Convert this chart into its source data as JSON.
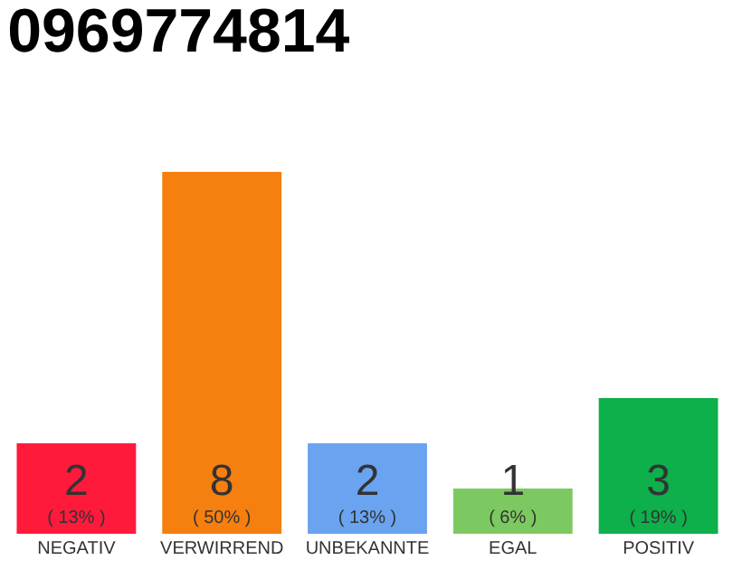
{
  "chart_data": {
    "type": "bar",
    "title": "0969774814",
    "categories": [
      "NEGATIV",
      "VERWIRREND",
      "UNBEKANNTE",
      "EGAL",
      "POSITIV"
    ],
    "values": [
      2,
      8,
      2,
      1,
      3
    ],
    "colors": [
      "#ff1a3c",
      "#f57f0f",
      "#6aa3ef",
      "#7dc961",
      "#0db04b"
    ],
    "value_labels": [
      "2\n( 13% )",
      "8\n( 50% )",
      "2\n( 13% )",
      "1\n( 6% )",
      "3\n( 19% )"
    ],
    "ylim": [
      0,
      8
    ],
    "tick_labels": "x"
  }
}
